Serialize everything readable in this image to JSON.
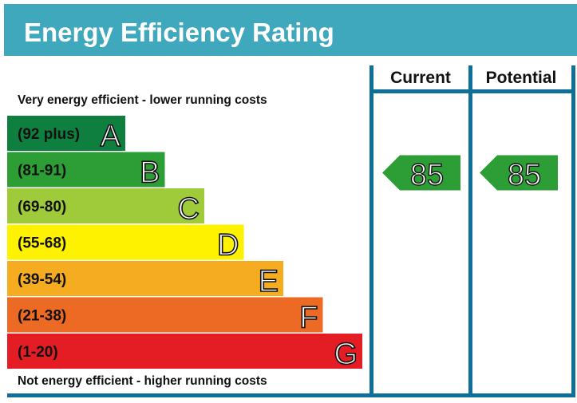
{
  "title": "Energy Efficiency Rating",
  "columns": {
    "current": "Current",
    "potential": "Potential"
  },
  "top_note": "Very energy efficient - lower running costs",
  "bottom_note": "Not energy efficient - higher running costs",
  "colors": {
    "header": "#3fa8bc",
    "frame": "#0f6f99",
    "rating_arrow": "#2c9e35"
  },
  "chart_data": {
    "type": "bar",
    "title": "Energy Efficiency Rating",
    "categories": [
      "A",
      "B",
      "C",
      "D",
      "E",
      "F",
      "G"
    ],
    "bands": [
      {
        "letter": "A",
        "range": "(92 plus)",
        "color": "#0f7f3f"
      },
      {
        "letter": "B",
        "range": "(81-91)",
        "color": "#2c9e35"
      },
      {
        "letter": "C",
        "range": "(69-80)",
        "color": "#9fcb3b"
      },
      {
        "letter": "D",
        "range": "(55-68)",
        "color": "#fef200"
      },
      {
        "letter": "E",
        "range": "(39-54)",
        "color": "#f6ac21"
      },
      {
        "letter": "F",
        "range": "(21-38)",
        "color": "#ec6a24"
      },
      {
        "letter": "G",
        "range": "(1-20)",
        "color": "#e31d23"
      }
    ],
    "current": {
      "value": 85,
      "band": "B"
    },
    "potential": {
      "value": 85,
      "band": "B"
    }
  }
}
